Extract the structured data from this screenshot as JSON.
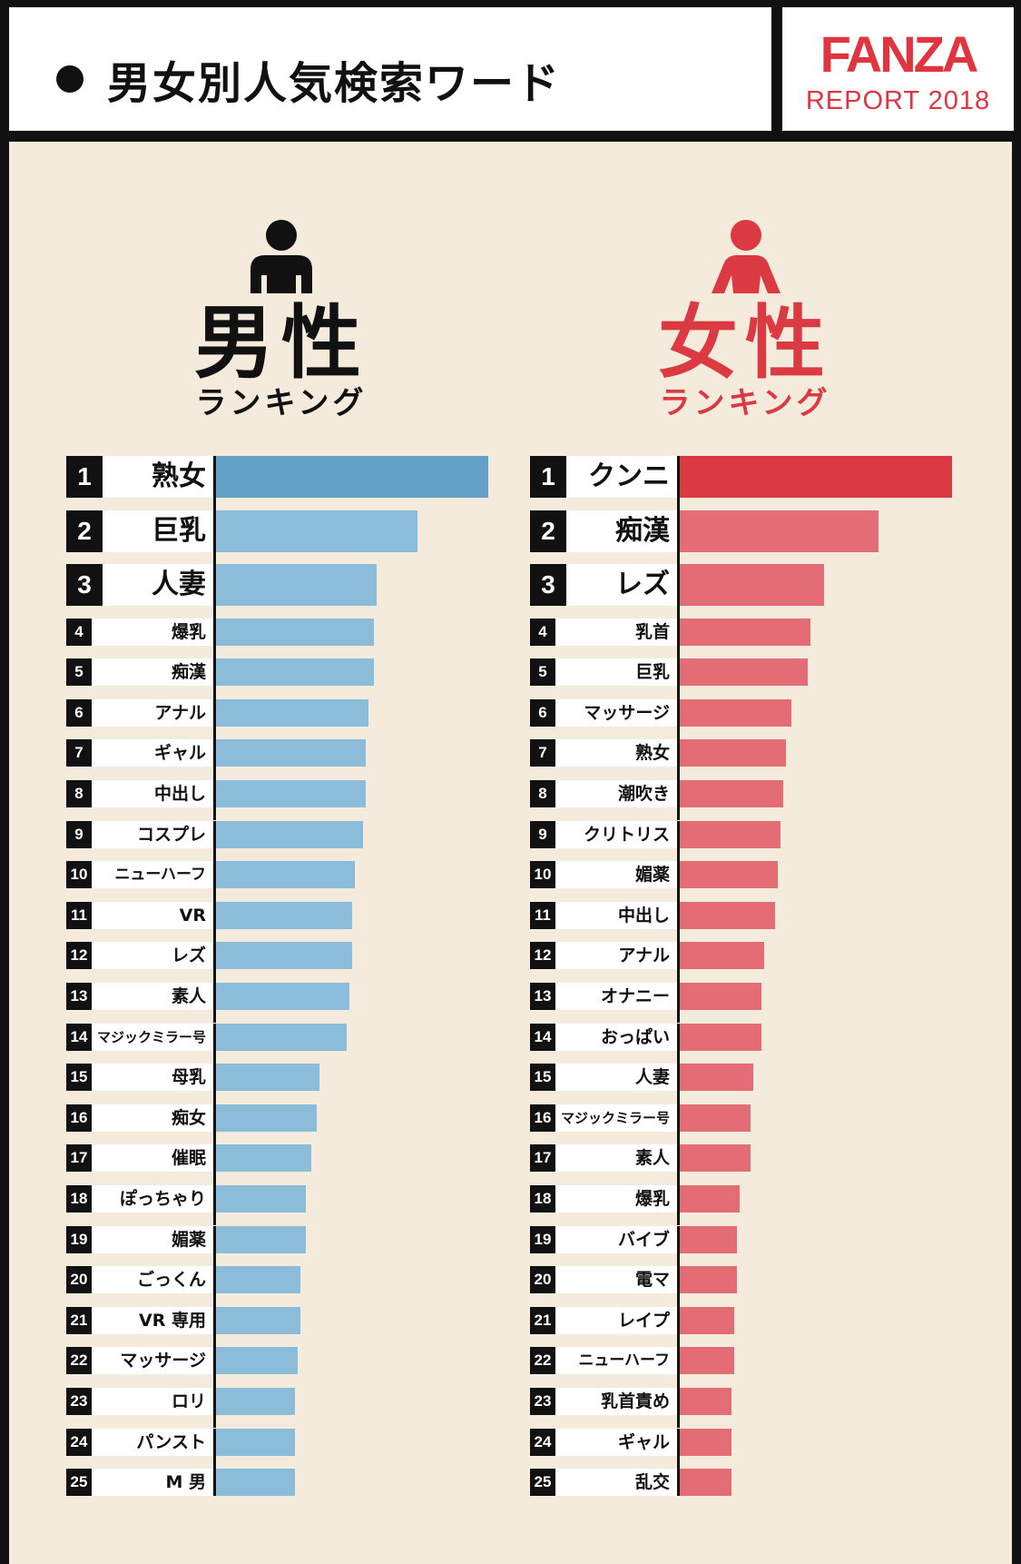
{
  "header": {
    "title": "男女別人気検索ワード",
    "logo_brand": "FANZA",
    "logo_sub": "REPORT 2018"
  },
  "colors": {
    "male_top": "#62a0c8",
    "male": "#8bbcda",
    "female_top": "#dc3a42",
    "female": "#e46c74",
    "background": "#f4ebdd",
    "logo": "#e0353e"
  },
  "male": {
    "icon": "person-icon",
    "heading": "男性",
    "subheading": "ランキング"
  },
  "female": {
    "icon": "person-icon",
    "heading": "女性",
    "subheading": "ランキング"
  },
  "chart_data": [
    {
      "type": "bar",
      "title": "男性",
      "categories": [
        "熟女",
        "巨乳",
        "人妻",
        "爆乳",
        "痴漢",
        "アナル",
        "ギャル",
        "中出し",
        "コスプレ",
        "ニューハーフ",
        "VR",
        "レズ",
        "素人",
        "マジックミラー号",
        "母乳",
        "痴女",
        "催眠",
        "ぽっちゃり",
        "媚薬",
        "ごっくん",
        "VR 専用",
        "マッサージ",
        "ロリ",
        "パンスト",
        "M 男"
      ],
      "series": [
        {
          "values": [
            100,
            74,
            59,
            58,
            58,
            56,
            55,
            55,
            54,
            51,
            50,
            50,
            49,
            48,
            38,
            37,
            35,
            33,
            33,
            31,
            31,
            30,
            29,
            29,
            29
          ]
        }
      ]
    },
    {
      "type": "bar",
      "title": "女性",
      "categories": [
        "クンニ",
        "痴漢",
        "レズ",
        "乳首",
        "巨乳",
        "マッサージ",
        "熟女",
        "潮吹き",
        "クリトリス",
        "媚薬",
        "中出し",
        "アナル",
        "オナニー",
        "おっぱい",
        "人妻",
        "マジックミラー号",
        "素人",
        "爆乳",
        "バイブ",
        "電マ",
        "レイプ",
        "ニューハーフ",
        "乳首責め",
        "ギャル",
        "乱交"
      ],
      "series": [
        {
          "values": [
            100,
            73,
            53,
            48,
            47,
            41,
            39,
            38,
            37,
            36,
            35,
            31,
            30,
            30,
            27,
            26,
            26,
            22,
            21,
            21,
            20,
            20,
            19,
            19,
            19
          ]
        }
      ]
    }
  ]
}
